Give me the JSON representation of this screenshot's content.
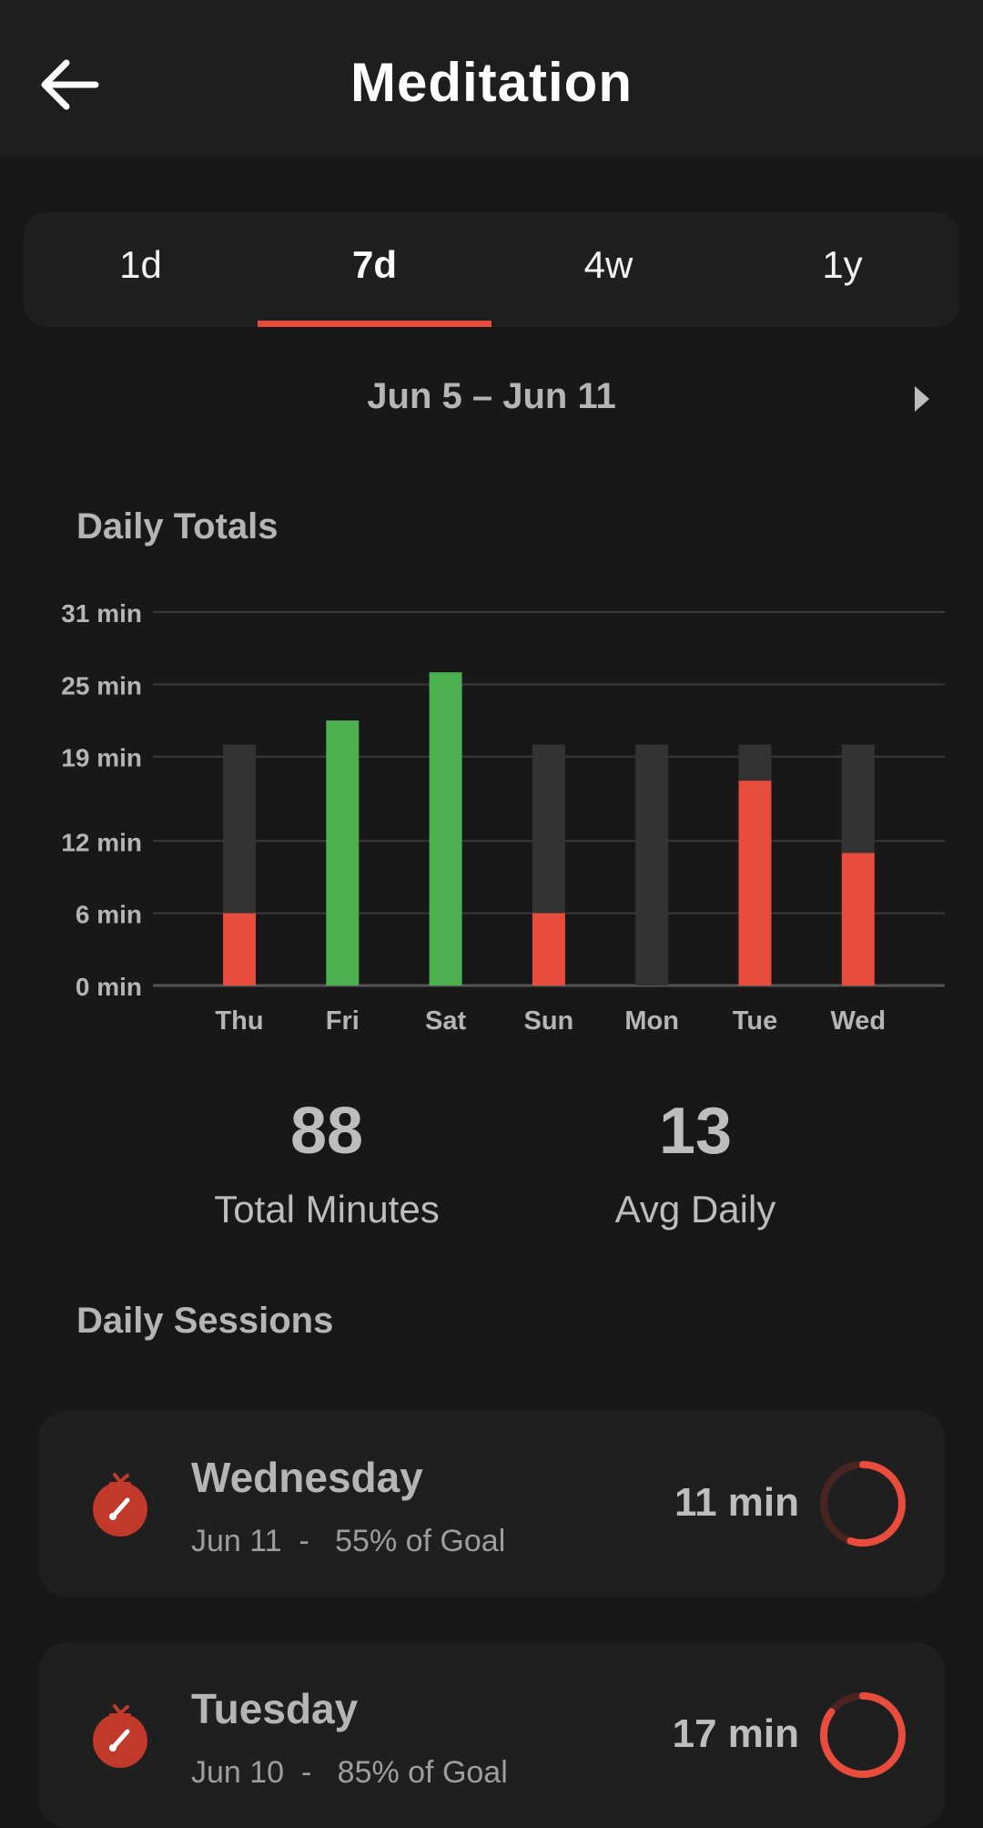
{
  "appbar": {
    "title": "Meditation",
    "back_icon": "arrow-back-icon"
  },
  "tabs": [
    {
      "label": "1d",
      "active": false
    },
    {
      "label": "7d",
      "active": true
    },
    {
      "label": "4w",
      "active": false
    },
    {
      "label": "1y",
      "active": false
    }
  ],
  "range": {
    "label": "Jun 5 – Jun 11",
    "next_icon": "triangle-right-icon"
  },
  "daily_totals": {
    "title": "Daily Totals"
  },
  "chart_data": {
    "type": "bar",
    "title": "",
    "xlabel": "",
    "ylabel": "",
    "categories": [
      "Thu",
      "Fri",
      "Sat",
      "Sun",
      "Mon",
      "Tue",
      "Wed"
    ],
    "values": [
      6,
      22,
      26,
      6,
      0,
      17,
      11
    ],
    "goal": 20,
    "ylim": [
      0,
      31
    ],
    "yticks": [
      0,
      6,
      12,
      19,
      25,
      31
    ],
    "ytick_labels": [
      "0 min",
      "6 min",
      "12 min",
      "19 min",
      "25 min",
      "31 min"
    ],
    "grid": true,
    "colors": {
      "met": "#4caf50",
      "under": "#e84c3d",
      "remaining": "#333333"
    }
  },
  "stats": [
    {
      "value": "88",
      "label": "Total Minutes"
    },
    {
      "value": "13",
      "label": "Avg Daily"
    }
  ],
  "daily_sessions": {
    "title": "Daily Sessions",
    "items": [
      {
        "day": "Wednesday",
        "date": "Jun 11",
        "goal_text": "55% of Goal",
        "minutes": "11 min",
        "progress": 0.55
      },
      {
        "day": "Tuesday",
        "date": "Jun 10",
        "goal_text": "85% of Goal",
        "minutes": "17 min",
        "progress": 0.85
      }
    ]
  },
  "colors": {
    "accent": "#e84c3d",
    "success": "#4caf50",
    "background": "#181818",
    "surface": "#1f1f1f"
  }
}
